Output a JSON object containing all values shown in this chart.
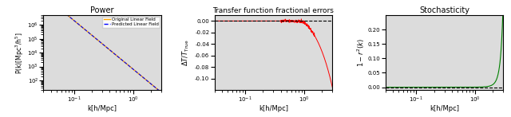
{
  "title1": "Power",
  "title2": "Transfer function fractional errors",
  "title3": "Stochasticity",
  "xlabel": "k[h/Mpc]",
  "ylabel1": "P(k)[Mpc$^3$/h$^5$]",
  "ylabel2": "$\\Delta T/T_{\\rm True}$",
  "ylabel3": "$1 - r^2(k)$",
  "legend1_labels": [
    "Original Linear Field",
    "Predicted Linear Field"
  ],
  "k_min": 0.03,
  "k_max": 3.0,
  "power_amp": 2000000.0,
  "power_slope": -3.5,
  "background_color": "#dcdcdc"
}
